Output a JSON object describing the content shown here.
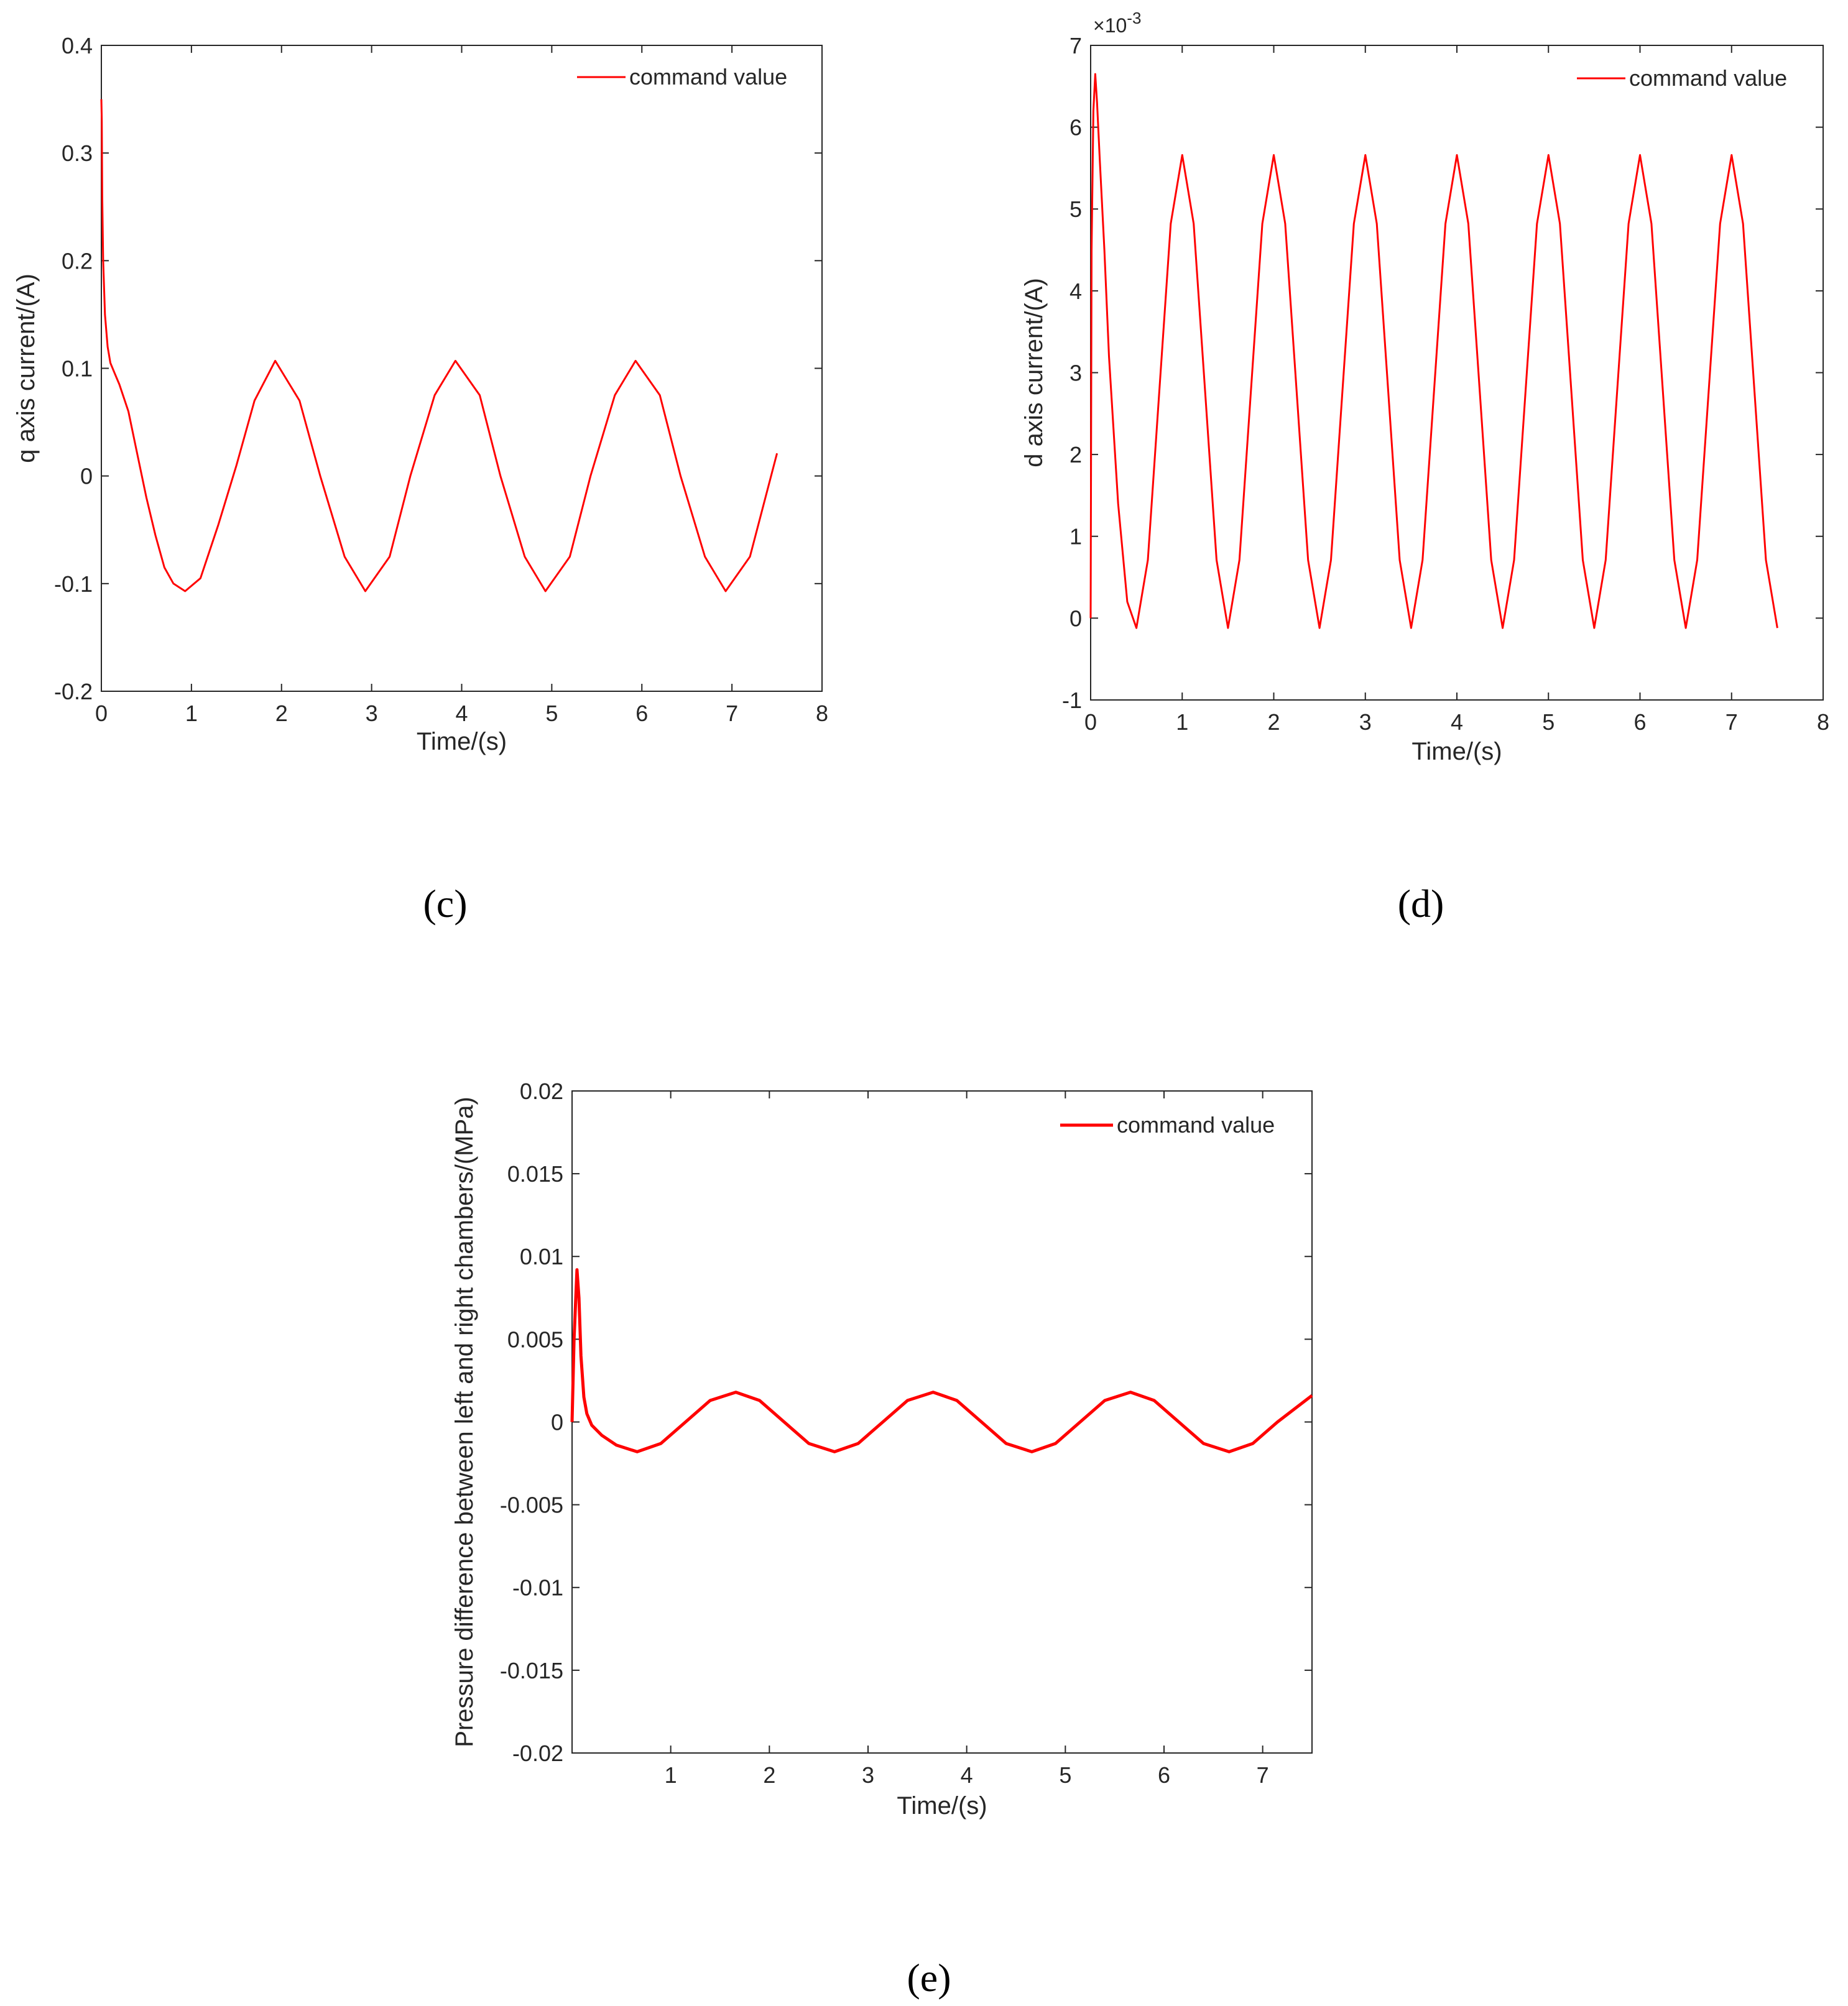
{
  "figures": [
    {
      "panel_label": "(c)"
    },
    {
      "panel_label": "(d)"
    },
    {
      "panel_label": "(e)"
    }
  ],
  "colors": {
    "line": "#ff0000",
    "axes": "#262626"
  },
  "chart_data": [
    {
      "type": "line",
      "panel": "(c)",
      "xlabel": "Time/(s)",
      "ylabel": "q axis current/(A)",
      "xlim": [
        0,
        8
      ],
      "ylim": [
        -0.2,
        0.4
      ],
      "xticks": [
        0,
        1,
        2,
        3,
        4,
        5,
        6,
        7,
        8
      ],
      "xtick_labels": [
        "0",
        "1",
        "2",
        "3",
        "4",
        "5",
        "6",
        "7",
        "8"
      ],
      "yticks": [
        -0.2,
        -0.1,
        0,
        0.1,
        0.2,
        0.3,
        0.4
      ],
      "ytick_labels": [
        "-0.2",
        "-0.1",
        "0",
        "0.1",
        "0.2",
        "0.3",
        "0.4"
      ],
      "grid": false,
      "legend_position": "top-right",
      "series": [
        {
          "name": "command value",
          "x": [
            0,
            0.005,
            0.01,
            0.02,
            0.04,
            0.07,
            0.1,
            0.15,
            0.2,
            0.3,
            0.4,
            0.5,
            0.6,
            0.7,
            0.8,
            0.93,
            1.1,
            1.3,
            1.5,
            1.7,
            1.93,
            2.2,
            2.43,
            2.7,
            2.93,
            3.2,
            3.43,
            3.7,
            3.93,
            4.2,
            4.43,
            4.7,
            4.93,
            5.2,
            5.43,
            5.7,
            5.93,
            6.2,
            6.43,
            6.7,
            6.93,
            7.2,
            7.5
          ],
          "y": [
            0.35,
            0.33,
            0.26,
            0.2,
            0.15,
            0.12,
            0.105,
            0.095,
            0.085,
            0.06,
            0.02,
            -0.02,
            -0.055,
            -0.085,
            -0.1,
            -0.107,
            -0.095,
            -0.045,
            0.01,
            0.07,
            0.107,
            0.07,
            0.0,
            -0.075,
            -0.107,
            -0.075,
            0.0,
            0.075,
            0.107,
            0.075,
            0.0,
            -0.075,
            -0.107,
            -0.075,
            0.0,
            0.075,
            0.107,
            0.075,
            0.0,
            -0.075,
            -0.107,
            -0.075,
            0.021
          ]
        }
      ]
    },
    {
      "type": "line",
      "panel": "(d)",
      "xlabel": "Time/(s)",
      "ylabel": "d axis current/(A)",
      "y_multiplier": "×10",
      "y_multiplier_exponent": "-3",
      "xlim": [
        0,
        8
      ],
      "ylim": [
        -1,
        7
      ],
      "xticks": [
        0,
        1,
        2,
        3,
        4,
        5,
        6,
        7,
        8
      ],
      "xtick_labels": [
        "0",
        "1",
        "2",
        "3",
        "4",
        "5",
        "6",
        "7",
        "8"
      ],
      "yticks": [
        -1,
        0,
        1,
        2,
        3,
        4,
        5,
        6,
        7
      ],
      "ytick_labels": [
        "-1",
        "0",
        "1",
        "2",
        "3",
        "4",
        "5",
        "6",
        "7"
      ],
      "grid": false,
      "legend_position": "top-right",
      "series": [
        {
          "name": "command value",
          "x": [
            0,
            0.01,
            0.03,
            0.05,
            0.07,
            0.1,
            0.15,
            0.2,
            0.3,
            0.4,
            0.5,
            0.625,
            0.75,
            0.875,
            1.0,
            1.125,
            1.25,
            1.375,
            1.5,
            1.625,
            1.75,
            1.875,
            2.0,
            2.125,
            2.25,
            2.375,
            2.5,
            2.625,
            2.75,
            2.875,
            3.0,
            3.125,
            3.25,
            3.375,
            3.5,
            3.625,
            3.75,
            3.875,
            4.0,
            4.125,
            4.25,
            4.375,
            4.5,
            4.625,
            4.75,
            4.875,
            5.0,
            5.125,
            5.25,
            5.375,
            5.5,
            5.625,
            5.75,
            5.875,
            6.0,
            6.125,
            6.25,
            6.375,
            6.5,
            6.625,
            6.75,
            6.875,
            7.0,
            7.125,
            7.25,
            7.375,
            7.5
          ],
          "y": [
            0,
            4.5,
            6.2,
            6.65,
            6.3,
            5.6,
            4.5,
            3.2,
            1.4,
            0.2,
            -0.12,
            0.71,
            2.77,
            4.82,
            5.66,
            4.82,
            2.77,
            0.71,
            -0.12,
            0.71,
            2.77,
            4.82,
            5.66,
            4.82,
            2.77,
            0.71,
            -0.12,
            0.71,
            2.77,
            4.82,
            5.66,
            4.82,
            2.77,
            0.71,
            -0.12,
            0.71,
            2.77,
            4.82,
            5.66,
            4.82,
            2.77,
            0.71,
            -0.12,
            0.71,
            2.77,
            4.82,
            5.66,
            4.82,
            2.77,
            0.71,
            -0.12,
            0.71,
            2.77,
            4.82,
            5.66,
            4.82,
            2.77,
            0.71,
            -0.12,
            0.71,
            2.77,
            4.82,
            5.66,
            4.82,
            2.77,
            0.71,
            -0.12
          ]
        }
      ]
    },
    {
      "type": "line",
      "panel": "(e)",
      "xlabel": "Time/(s)",
      "ylabel": "Pressure difference between left and right chambers/(MPa)",
      "xlim": [
        0,
        7.5
      ],
      "ylim": [
        -0.02,
        0.02
      ],
      "xticks": [
        1,
        2,
        3,
        4,
        5,
        6,
        7
      ],
      "xtick_labels": [
        "1",
        "2",
        "3",
        "4",
        "5",
        "6",
        "7"
      ],
      "yticks": [
        -0.02,
        -0.015,
        -0.01,
        -0.005,
        0,
        0.005,
        0.01,
        0.015,
        0.02
      ],
      "ytick_labels": [
        "-0.02",
        "-0.015",
        "-0.01",
        "-0.005",
        "0",
        "0.005",
        "0.01",
        "0.015",
        "0.02"
      ],
      "grid": false,
      "legend_position": "top-right",
      "series": [
        {
          "name": "command value",
          "x": [
            0,
            0.02,
            0.05,
            0.07,
            0.09,
            0.12,
            0.15,
            0.2,
            0.3,
            0.45,
            0.66,
            0.9,
            1.15,
            1.4,
            1.66,
            1.9,
            2.15,
            2.4,
            2.66,
            2.9,
            3.15,
            3.4,
            3.66,
            3.9,
            4.15,
            4.4,
            4.66,
            4.9,
            5.15,
            5.4,
            5.66,
            5.9,
            6.15,
            6.4,
            6.66,
            6.9,
            7.15,
            7.5
          ],
          "y": [
            0,
            0.005,
            0.0092,
            0.0075,
            0.004,
            0.0015,
            0.0005,
            -0.0002,
            -0.0008,
            -0.0014,
            -0.0018,
            -0.0013,
            0.0,
            0.0013,
            0.0018,
            0.0013,
            0.0,
            -0.0013,
            -0.0018,
            -0.0013,
            0.0,
            0.0013,
            0.0018,
            0.0013,
            0.0,
            -0.0013,
            -0.0018,
            -0.0013,
            0.0,
            0.0013,
            0.0018,
            0.0013,
            0.0,
            -0.0013,
            -0.0018,
            -0.0013,
            0.0,
            0.0016
          ]
        }
      ]
    }
  ]
}
